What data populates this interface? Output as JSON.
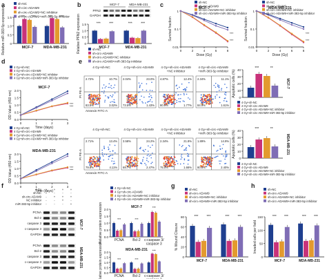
{
  "colors": {
    "c1": "#1f3f8f",
    "c2": "#c8327a",
    "c3": "#e39a2e",
    "c4": "#7f6db5",
    "grey": "#555555"
  },
  "panels": {
    "a": "a",
    "b": "b",
    "c": "c",
    "d": "d",
    "e": "e",
    "f": "f",
    "g": "g",
    "h": "h"
  },
  "legend_a": [
    "sh-NC",
    "sh-circ-ADAM9",
    "sh-circ-ADAM9+NC inhibitor",
    "sh-circ-ADAM9+miR-383-5p inhibitor"
  ],
  "legend_short": [
    "sh-NC",
    "sh-circ-ADAM9",
    "sh-circ-ADAM9+NC inhibitor",
    "sh-circ-ADAM9+miR-383-5p inhibitor"
  ],
  "legend_e": [
    "4 Gy+sh-NC",
    "4 Gy+sh-circ-ADAM9",
    "4 Gy+sh-circ-ADAM9+NC inhibitor",
    "4 Gy+sh-circ-ADAM9+miR-383-5p inhibitor"
  ],
  "cell_lines": [
    "MCF-7",
    "MDA-MB-231"
  ],
  "ylabels": {
    "a": "Relative miR-383-5p expression",
    "b": "Relative PFN2 expression",
    "c": "Survival fraction",
    "d": "OD Value (450 nm)",
    "e": "Apoptotic cells (%)",
    "f": "Relative protein expression",
    "g": "% Wound Closure",
    "h": "Invaded cells per field"
  },
  "xlabels": {
    "c": "Dose (Gy)",
    "d": "Time (days)"
  },
  "blot_b": [
    "PFN2",
    "GAPDH"
  ],
  "blot_b_heads": [
    "MCF-7",
    "MDA-MB-231"
  ],
  "flow": {
    "groups": [
      "4 Gy+sh-NC",
      "4 Gy+sh-circ-ADAM9",
      "4 Gy+sh-circ-ADAM9\n+NC inhibitor",
      "4 Gy+sh-circ-ADAM9\n+miR-383-5p inhibitor"
    ],
    "xaxis": "Annexin FITC-A",
    "yaxis": "PI PE-A",
    "quads_top": [
      [
        "2.72%",
        "10.7%",
        "83.5%",
        "3.02%"
      ],
      [
        "2.04%",
        "23.0%",
        "73.5%",
        "1.43%"
      ],
      [
        "4.87%",
        "12.4%",
        "80.9%",
        "1.77%"
      ],
      [
        "2.34%",
        "11.1%",
        "84.9%",
        "1.61%"
      ]
    ],
    "quads_bot": [
      [
        "2.71%",
        "13.4%",
        "79.8%",
        "4.11%"
      ],
      [
        "3.58%",
        "24.2%",
        "69.7%",
        "2.47%"
      ],
      [
        "2.34%",
        "21.8%",
        "75.0%",
        "1.66%"
      ],
      [
        "1.89%",
        "14.9%",
        "80.8%",
        "2.40%"
      ]
    ]
  },
  "blot_f": {
    "conds": [
      "4 Gy",
      "sh-NC",
      "sh-circ-ADAM9",
      "NC inhibitor",
      "miR-383-5p inhibitor"
    ],
    "rows1": [
      "PCNA",
      "Bcl-2",
      "caspase 3",
      "c-caspase 3",
      "GAPDH"
    ],
    "rows2": [
      "PCNA",
      "Bcl-2",
      "caspase 3",
      "c-caspase 3",
      "GAPDH"
    ],
    "side": [
      "MCF-7",
      "MDA-MB-231"
    ]
  },
  "f_cats": [
    "PCNA",
    "Bcl-2",
    "c-caspase 3/\ncaspase 3"
  ],
  "ticks": {
    "a": [
      "0",
      "0.5",
      "1.0",
      "1.5"
    ],
    "b": [
      "0",
      "0.5",
      "1.0",
      "1.5"
    ],
    "c_x": [
      "0",
      "2",
      "4",
      "6",
      "8"
    ],
    "c_y": [
      "0.01",
      "0.1",
      "1"
    ],
    "d_x": [
      "0",
      "1",
      "2",
      "3"
    ],
    "d_y": [
      "0.0",
      "0.5",
      "1.0",
      "1.5",
      "2.0"
    ],
    "e": [
      "0",
      "10",
      "20",
      "30",
      "40"
    ],
    "f": [
      "0.0",
      "0.5",
      "1.0",
      "1.5",
      "2.0"
    ],
    "g": [
      "0",
      "20",
      "40",
      "60",
      "80"
    ],
    "h": [
      "0",
      "50",
      "100",
      "150"
    ]
  },
  "sig": "***",
  "sig2": "**",
  "chart_data": [
    {
      "panel": "a",
      "type": "bar",
      "categories": [
        "MCF-7",
        "MDA-MB-231"
      ],
      "ylim": [
        0,
        1.5
      ],
      "series": [
        {
          "name": "sh-NC",
          "values": [
            1.0,
            1.0
          ]
        },
        {
          "name": "sh-circ-ADAM9",
          "values": [
            1.4,
            1.45
          ]
        },
        {
          "name": "sh-circ-ADAM9+NC inhibitor",
          "values": [
            1.35,
            1.4
          ]
        },
        {
          "name": "sh-circ-ADAM9+miR-383-5p inhibitor",
          "values": [
            0.95,
            0.92
          ]
        }
      ]
    },
    {
      "panel": "b",
      "type": "bar",
      "categories": [
        "MCF-7",
        "MDA-MB-231"
      ],
      "ylim": [
        0,
        1.5
      ],
      "series": [
        {
          "name": "sh-NC",
          "values": [
            1.0,
            1.0
          ]
        },
        {
          "name": "sh-circ-ADAM9",
          "values": [
            0.35,
            0.45
          ]
        },
        {
          "name": "sh-circ-ADAM9+NC inhibitor",
          "values": [
            0.38,
            0.42
          ]
        },
        {
          "name": "sh-circ-ADAM9+miR-383-5p inhibitor",
          "values": [
            0.95,
            1.0
          ]
        }
      ]
    },
    {
      "panel": "c-MCF-7",
      "type": "line",
      "x": [
        0,
        2,
        4,
        6,
        8
      ],
      "series": [
        {
          "name": "sh-NC",
          "values": [
            1,
            0.62,
            0.35,
            0.2,
            0.12
          ]
        },
        {
          "name": "sh-circ-ADAM9",
          "values": [
            1,
            0.45,
            0.16,
            0.06,
            0.02
          ]
        },
        {
          "name": "sh-circ-ADAM9+NC inhibitor",
          "values": [
            1,
            0.47,
            0.17,
            0.065,
            0.022
          ]
        },
        {
          "name": "sh-circ-ADAM9+miR-383-5p inhibitor",
          "values": [
            1,
            0.58,
            0.3,
            0.15,
            0.09
          ]
        }
      ]
    },
    {
      "panel": "c-MDA-MB-231",
      "type": "line",
      "x": [
        0,
        2,
        4,
        6,
        8
      ],
      "series": [
        {
          "name": "sh-NC",
          "values": [
            1,
            0.65,
            0.38,
            0.22,
            0.13
          ]
        },
        {
          "name": "sh-circ-ADAM9",
          "values": [
            1,
            0.42,
            0.15,
            0.05,
            0.018
          ]
        },
        {
          "name": "sh-circ-ADAM9+NC inhibitor",
          "values": [
            1,
            0.44,
            0.16,
            0.055,
            0.02
          ]
        },
        {
          "name": "sh-circ-ADAM9+miR-383-5p inhibitor",
          "values": [
            1,
            0.6,
            0.32,
            0.17,
            0.1
          ]
        }
      ]
    },
    {
      "panel": "d-MCF-7",
      "type": "line",
      "x": [
        0,
        1,
        2,
        3
      ],
      "series": [
        {
          "name": "4 Gy+sh-NC",
          "values": [
            0.3,
            0.85,
            1.4,
            1.95
          ]
        },
        {
          "name": "4 Gy+sh-circ-ADAM9",
          "values": [
            0.3,
            0.6,
            0.9,
            1.1
          ]
        },
        {
          "name": "4 Gy+sh-circ-ADAM9+NC inhibitor",
          "values": [
            0.3,
            0.62,
            0.92,
            1.15
          ]
        },
        {
          "name": "4 Gy+sh-circ-ADAM9+miR-383-5p inhibitor",
          "values": [
            0.3,
            0.8,
            1.3,
            1.8
          ]
        }
      ]
    },
    {
      "panel": "d-MDA-MB-231",
      "type": "line",
      "x": [
        0,
        1,
        2,
        3
      ],
      "series": [
        {
          "name": "4 Gy+sh-NC",
          "values": [
            0.3,
            0.9,
            1.45,
            2.0
          ]
        },
        {
          "name": "4 Gy+sh-circ-ADAM9",
          "values": [
            0.3,
            0.58,
            0.85,
            1.05
          ]
        },
        {
          "name": "4 Gy+sh-circ-ADAM9+NC inhibitor",
          "values": [
            0.3,
            0.6,
            0.88,
            1.1
          ]
        },
        {
          "name": "4 Gy+sh-circ-ADAM9+miR-383-5p inhibitor",
          "values": [
            0.3,
            0.82,
            1.35,
            1.85
          ]
        }
      ]
    },
    {
      "panel": "e-MCF-7",
      "type": "bar",
      "categories": [
        "4 Gy+sh-NC",
        "4 Gy+sh-circ-ADAM9",
        "4 Gy+sh-circ-ADAM9+NC inhibitor",
        "4 Gy+sh-circ-ADAM9+miR-383-5p inhibitor"
      ],
      "values": [
        14,
        34,
        31,
        17
      ],
      "ylim": [
        0,
        40
      ]
    },
    {
      "panel": "e-MDA-MB-231",
      "type": "bar",
      "categories": [
        "4 Gy+sh-NC",
        "4 Gy+sh-circ-ADAM9",
        "4 Gy+sh-circ-ADAM9+NC inhibitor",
        "4 Gy+sh-circ-ADAM9+miR-383-5p inhibitor"
      ],
      "values": [
        16,
        27,
        29,
        17
      ],
      "ylim": [
        0,
        40
      ]
    },
    {
      "panel": "f-MCF-7",
      "type": "bar",
      "categories": [
        "PCNA",
        "Bcl-2",
        "c-caspase 3/caspase 3"
      ],
      "ylim": [
        0,
        2
      ],
      "series": [
        {
          "name": "4 Gy+sh-NC",
          "values": [
            1.0,
            1.0,
            1.0
          ]
        },
        {
          "name": "4 Gy+sh-circ-ADAM9",
          "values": [
            0.45,
            0.4,
            1.8
          ]
        },
        {
          "name": "4 Gy+sh-circ-ADAM9+NC inhibitor",
          "values": [
            0.48,
            0.42,
            1.75
          ]
        },
        {
          "name": "4 Gy+sh-circ-ADAM9+miR-383-5p inhibitor",
          "values": [
            0.9,
            0.95,
            1.1
          ]
        }
      ]
    },
    {
      "panel": "f-MDA-MB-231",
      "type": "bar",
      "categories": [
        "PCNA",
        "Bcl-2",
        "c-caspase 3/caspase 3"
      ],
      "ylim": [
        0,
        2
      ],
      "series": [
        {
          "name": "4 Gy+sh-NC",
          "values": [
            1.0,
            1.0,
            1.0
          ]
        },
        {
          "name": "4 Gy+sh-circ-ADAM9",
          "values": [
            0.4,
            0.38,
            1.85
          ]
        },
        {
          "name": "4 Gy+sh-circ-ADAM9+NC inhibitor",
          "values": [
            0.42,
            0.4,
            1.8
          ]
        },
        {
          "name": "4 Gy+sh-circ-ADAM9+miR-383-5p inhibitor",
          "values": [
            0.92,
            0.9,
            1.1
          ]
        }
      ]
    },
    {
      "panel": "g",
      "type": "bar",
      "categories": [
        "MCF-7",
        "MDA-MB-231"
      ],
      "ylim": [
        0,
        80
      ],
      "series": [
        {
          "name": "sh-NC",
          "values": [
            62,
            65
          ]
        },
        {
          "name": "sh-circ-ADAM9",
          "values": [
            30,
            32
          ]
        },
        {
          "name": "sh-circ-ADAM9+NC inhibitor",
          "values": [
            32,
            33
          ]
        },
        {
          "name": "sh-circ-ADAM9+miR-383-5p inhibitor",
          "values": [
            58,
            60
          ]
        }
      ]
    },
    {
      "panel": "h",
      "type": "bar",
      "categories": [
        "MCF-7",
        "MDA-MB-231"
      ],
      "ylim": [
        0,
        150
      ],
      "series": [
        {
          "name": "sh-NC",
          "values": [
            120,
            125
          ]
        },
        {
          "name": "sh-circ-ADAM9",
          "values": [
            55,
            60
          ]
        },
        {
          "name": "sh-circ-ADAM9+NC inhibitor",
          "values": [
            58,
            62
          ]
        },
        {
          "name": "sh-circ-ADAM9+miR-383-5p inhibitor",
          "values": [
            112,
            118
          ]
        }
      ]
    }
  ]
}
